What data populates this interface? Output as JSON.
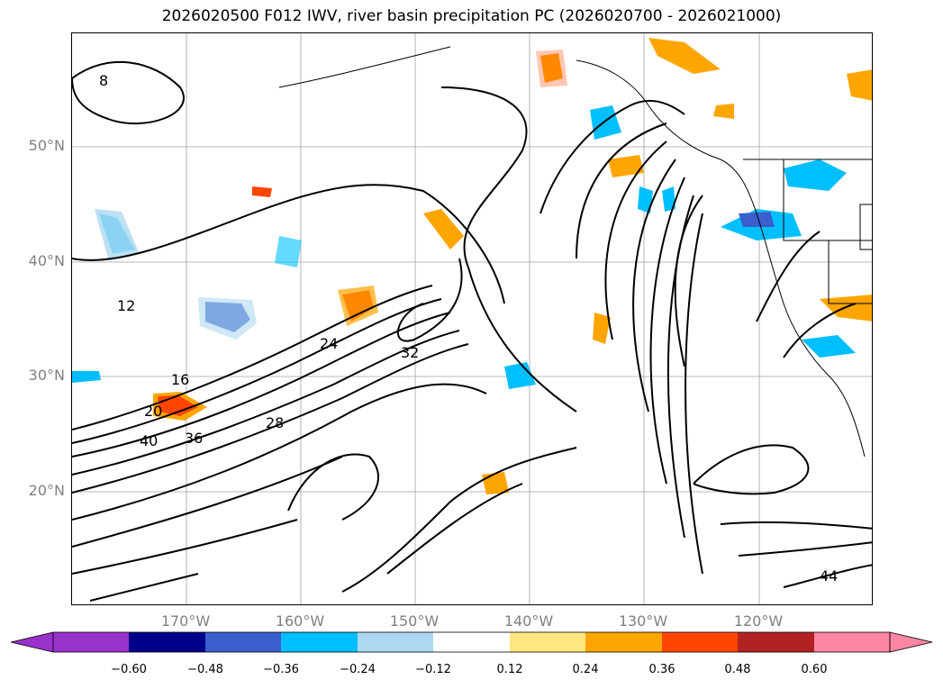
{
  "title": "2026020500 F012 IWV, river basin precipitation PC (2026020700 - 2026021000)",
  "lat_labels": [
    "50°N",
    "40°N",
    "30°N",
    "20°N"
  ],
  "lon_labels": [
    "170°W",
    "160°W",
    "150°W",
    "140°W",
    "130°W",
    "120°W"
  ],
  "colorbar": {
    "ticks": [
      "−0.60",
      "−0.48",
      "−0.36",
      "−0.24",
      "−0.12",
      "0.12",
      "0.24",
      "0.36",
      "0.48",
      "0.60"
    ],
    "colors": [
      "#9932cc",
      "#00008b",
      "#3a5fcd",
      "#00bfff",
      "#add8f0",
      "#ffffff",
      "#ffe680",
      "#ffa500",
      "#ff4500",
      "#b22222",
      "#ff85a5"
    ]
  },
  "contour_labels": [
    "8",
    "12",
    "16",
    "20",
    "24",
    "28",
    "32",
    "36",
    "40",
    "44"
  ]
}
